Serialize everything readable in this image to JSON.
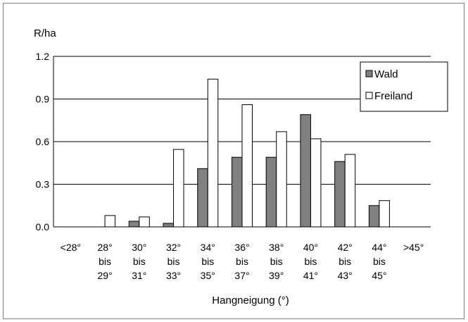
{
  "chart_data": {
    "type": "bar",
    "title": "",
    "ylabel": "R/ha",
    "xlabel": "Hangneigung (°)",
    "ylim": [
      0,
      1.2
    ],
    "yticks": [
      "0.0",
      "0.3",
      "0.6",
      "0.9",
      "1.2"
    ],
    "grid": true,
    "legend_position": "top-right",
    "categories": [
      [
        "<28°"
      ],
      [
        "28°",
        "bis",
        "29°"
      ],
      [
        "30°",
        "bis",
        "31°"
      ],
      [
        "32°",
        "bis",
        "33°"
      ],
      [
        "34°",
        "bis",
        "35°"
      ],
      [
        "36°",
        "bis",
        "37°"
      ],
      [
        "38°",
        "bis",
        "39°"
      ],
      [
        "40°",
        "bis",
        "41°"
      ],
      [
        "42°",
        "bis",
        "43°"
      ],
      [
        "44°",
        "bis",
        "45°"
      ],
      [
        ">45°"
      ]
    ],
    "series": [
      {
        "name": "Wald",
        "color": "#808080",
        "values": [
          0,
          0,
          0.04,
          0.025,
          0.41,
          0.49,
          0.49,
          0.79,
          0.46,
          0.15,
          0
        ]
      },
      {
        "name": "Freiland",
        "color": "#ffffff",
        "values": [
          0,
          0.08,
          0.07,
          0.545,
          1.04,
          0.86,
          0.67,
          0.62,
          0.51,
          0.185,
          0
        ]
      }
    ]
  }
}
